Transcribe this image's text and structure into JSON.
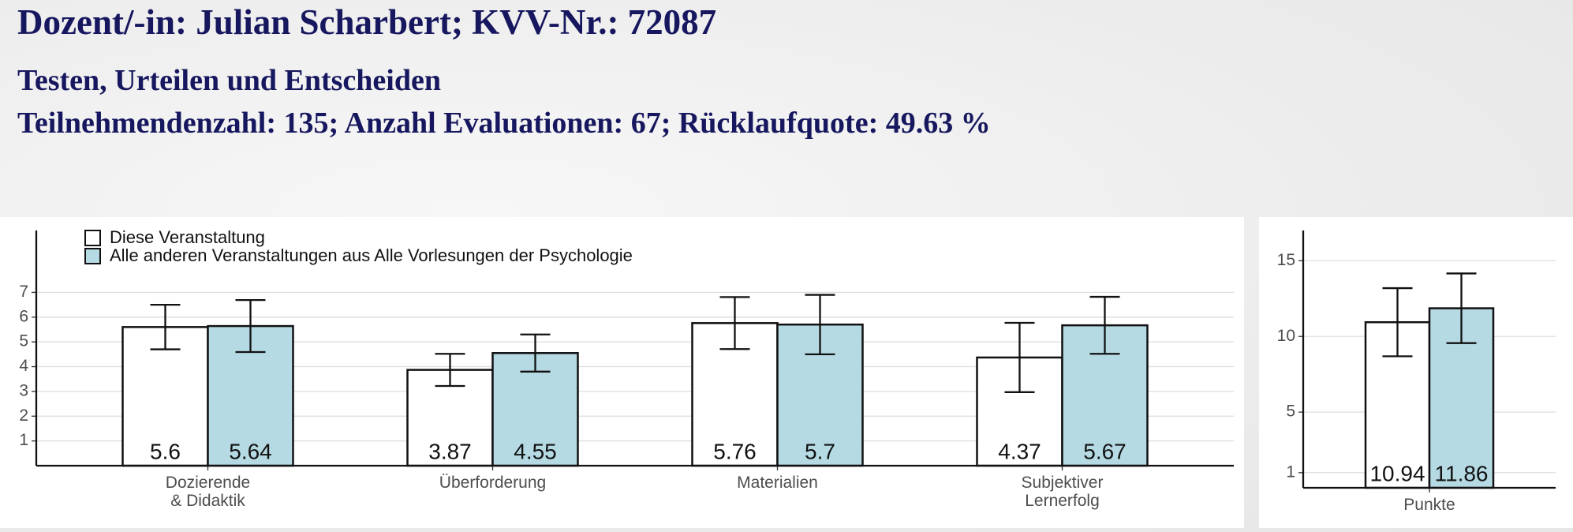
{
  "header": {
    "title": "Dozent/-in: Julian Scharbert; KVV-Nr.: 72087",
    "subtitle": "Testen, Urteilen und Entscheiden",
    "stats": "Teilnehmendenzahl: 135; Anzahl Evaluationen: 67; Rücklaufquote: 49.63 %"
  },
  "chart_data": [
    {
      "type": "bar",
      "categories": [
        "Dozierende\n& Didaktik",
        "Überforderung",
        "Materialien",
        "Subjektiver\nLernerfolg"
      ],
      "series": [
        {
          "name": "Diese Veranstaltung",
          "color": "#ffffff",
          "values": [
            5.6,
            3.87,
            5.76,
            4.37
          ],
          "errors": [
            0.9,
            0.65,
            1.05,
            1.4
          ]
        },
        {
          "name": "Alle anderen Veranstaltungen aus Alle Vorlesungen der Psychologie",
          "color": "#b6dae4",
          "values": [
            5.64,
            4.55,
            5.7,
            5.67
          ],
          "errors": [
            1.05,
            0.75,
            1.2,
            1.15
          ]
        }
      ],
      "ylim": [
        0,
        9.5
      ],
      "yticks": [
        1,
        2,
        3,
        4,
        5,
        6,
        7
      ],
      "grid": true,
      "legend": "top-left"
    },
    {
      "type": "bar",
      "categories": [
        "Punkte"
      ],
      "series": [
        {
          "color": "#ffffff",
          "values": [
            10.94
          ],
          "errors": [
            2.25
          ]
        },
        {
          "color": "#b6dae4",
          "values": [
            11.86
          ],
          "errors": [
            2.3
          ]
        }
      ],
      "ylim": [
        0,
        17
      ],
      "yticks": [
        1,
        5,
        10,
        15
      ],
      "grid": true
    }
  ]
}
